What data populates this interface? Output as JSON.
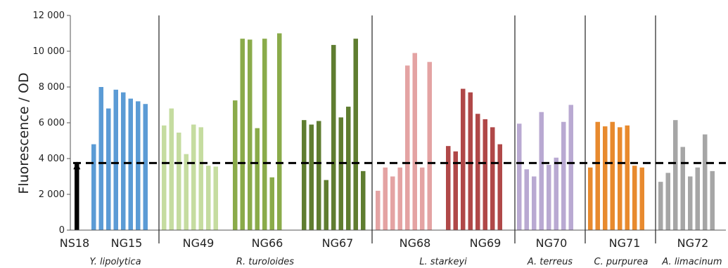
{
  "chart_data": {
    "type": "bar",
    "ylabel": "Fluorescence / OD",
    "ylim": [
      0,
      12000
    ],
    "yticks": [
      {
        "value": 0,
        "label": "0"
      },
      {
        "value": 2000,
        "label": "2 000"
      },
      {
        "value": 4000,
        "label": "4 000"
      },
      {
        "value": 6000,
        "label": "6 000"
      },
      {
        "value": 8000,
        "label": "8 000"
      },
      {
        "value": 10000,
        "label": "10 000"
      },
      {
        "value": 12000,
        "label": "12 000"
      }
    ],
    "grid": false,
    "threshold": 3750,
    "groups": [
      {
        "species": "Y. lipolytica",
        "color": "#000000",
        "strain": "NS18",
        "bars": [
          3750
        ]
      },
      {
        "species": "Y. lipolytica",
        "color": "#5b9bd5",
        "strain": "NG15",
        "bars": [
          4800,
          8000,
          6800,
          7850,
          7700,
          7350,
          7200,
          7050
        ]
      },
      {
        "species": "R. turoloides",
        "color": "#c5dca0",
        "strain": "NG49",
        "bars": [
          5850,
          6800,
          5450,
          4250,
          5900,
          5750,
          3600,
          3550
        ]
      },
      {
        "species": "R. turoloides",
        "color": "#8aab4a",
        "strain": "NG66",
        "bars": [
          7250,
          10700,
          10650,
          5700,
          10700,
          2950,
          11000
        ]
      },
      {
        "species": "R. turoloides",
        "color": "#5f7d30",
        "strain": "NG67",
        "bars": [
          6150,
          5900,
          6100,
          2800,
          10350,
          6300,
          6900,
          10700,
          3300
        ]
      },
      {
        "species": "L. starkeyi",
        "color": "#e4a3a3",
        "strain": "NG68",
        "bars": [
          2200,
          3500,
          3000,
          3500,
          9200,
          9900,
          3500,
          9400
        ]
      },
      {
        "species": "L. starkeyi",
        "color": "#b04848",
        "strain": "NG69",
        "bars": [
          4700,
          4400,
          7900,
          7700,
          6500,
          6200,
          5750,
          4800
        ]
      },
      {
        "species": "A. terreus",
        "color": "#b9a9d2",
        "strain": "NG70",
        "bars": [
          5950,
          3400,
          3000,
          6600,
          3650,
          4050,
          6050,
          7000
        ]
      },
      {
        "species": "C. purpurea",
        "color": "#e88a2e",
        "strain": "NG71",
        "bars": [
          3500,
          6050,
          5800,
          6050,
          5750,
          5850,
          3600,
          3500
        ]
      },
      {
        "species": "A. limacinum",
        "color": "#a6a6a6",
        "strain": "NG72",
        "bars": [
          2700,
          3200,
          6150,
          4650,
          3000,
          3500,
          5350,
          3300
        ]
      }
    ],
    "strain_labels": [
      "NS18",
      "NG15",
      "NG49",
      "NG66",
      "NG67",
      "NG68",
      "NG69",
      "NG70",
      "NG71",
      "NG72"
    ],
    "species_labels": [
      "Y. lipolytica",
      "R. turoloides",
      "L. starkeyi",
      "A. terreus",
      "C. purpurea",
      "A. limacinum"
    ]
  }
}
